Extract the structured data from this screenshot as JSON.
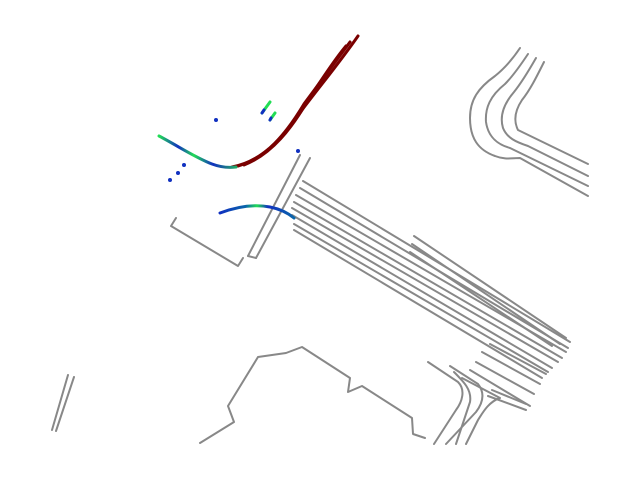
{
  "map": {
    "background_color": "#ffffff",
    "road_color": "#888888",
    "history_color": "#7a0000",
    "prediction_colors": [
      "#1030c0",
      "#22dd55",
      "#0a66aa"
    ],
    "agent_color": "#1030c0"
  }
}
